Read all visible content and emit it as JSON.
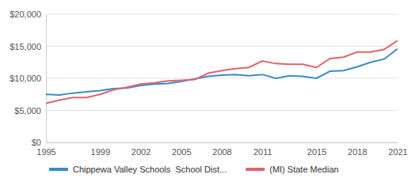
{
  "chart_data": {
    "type": "line",
    "x": [
      1995,
      1996,
      1997,
      1998,
      1999,
      2000,
      2001,
      2002,
      2003,
      2004,
      2005,
      2006,
      2007,
      2008,
      2009,
      2010,
      2011,
      2012,
      2013,
      2014,
      2015,
      2016,
      2017,
      2018,
      2019,
      2020,
      2021
    ],
    "series": [
      {
        "name": "Chippewa Valley Schools  School Dist...",
        "color": "#3a8cc8",
        "values": [
          7500,
          7400,
          7700,
          7900,
          8100,
          8400,
          8500,
          8900,
          9100,
          9200,
          9500,
          9900,
          10300,
          10500,
          10600,
          10400,
          10600,
          10000,
          10400,
          10300,
          10000,
          11100,
          11200,
          11800,
          12500,
          13000,
          14600
        ]
      },
      {
        "name": "(MI) State Median",
        "color": "#de6570",
        "values": [
          6100,
          6600,
          7000,
          7000,
          7500,
          8200,
          8600,
          9100,
          9300,
          9600,
          9700,
          9800,
          10800,
          11200,
          11500,
          11700,
          12700,
          12300,
          12200,
          12200,
          11700,
          13100,
          13300,
          14100,
          14100,
          14500,
          15900
        ]
      }
    ],
    "xlim": [
      1995,
      2021
    ],
    "xticks": [
      1995,
      1999,
      2002,
      2005,
      2008,
      2011,
      2015,
      2018,
      2021
    ],
    "ylim": [
      0,
      20000
    ],
    "yticks": [
      {
        "value": 0,
        "label": "$0"
      },
      {
        "value": 5000,
        "label": "$5,000"
      },
      {
        "value": 10000,
        "label": "$10,000"
      },
      {
        "value": 15000,
        "label": "$15,000"
      },
      {
        "value": 20000,
        "label": "$20,000"
      }
    ],
    "grid": true,
    "legend": "bottom"
  }
}
